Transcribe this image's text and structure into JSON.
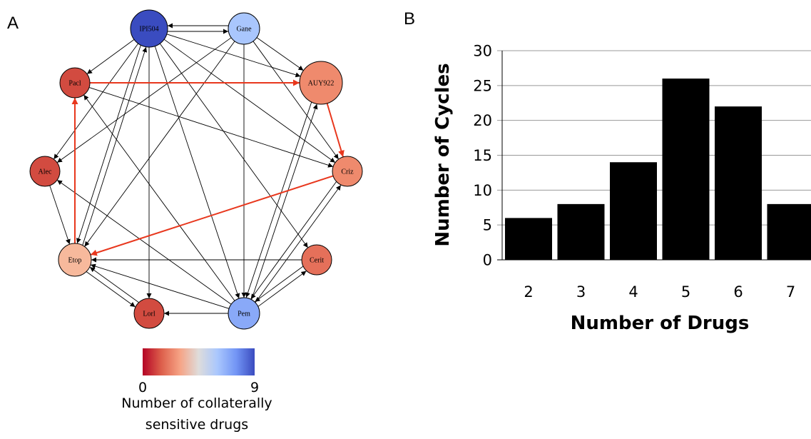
{
  "panels": {
    "a": "A",
    "b": "B"
  },
  "network": {
    "nodes": [
      {
        "id": "IPI504",
        "label": "IPI504",
        "value": 9,
        "color": "#3a4cc0"
      },
      {
        "id": "Gane",
        "label": "Gane",
        "value": 6,
        "color": "#a9c6fd"
      },
      {
        "id": "AUY922",
        "label": "AUY922",
        "value": 2,
        "color": "#ef8a6d"
      },
      {
        "id": "Criz",
        "label": "Criz",
        "value": 2,
        "color": "#ef8a6d"
      },
      {
        "id": "Cerit",
        "label": "Cerit",
        "value": 1,
        "color": "#e5705a"
      },
      {
        "id": "Pem",
        "label": "Pem",
        "value": 7,
        "color": "#89a9f8"
      },
      {
        "id": "Lorl",
        "label": "Lorl",
        "value": 0,
        "color": "#d24b40"
      },
      {
        "id": "Etop",
        "label": "Etop",
        "value": 3,
        "color": "#f7b99c"
      },
      {
        "id": "Alec",
        "label": "Alec",
        "value": 0,
        "color": "#d24b40"
      },
      {
        "id": "Pacl",
        "label": "Pacl",
        "value": 0,
        "color": "#d24b40"
      }
    ],
    "edges": [
      {
        "from": "IPI504",
        "to": "Gane"
      },
      {
        "from": "Gane",
        "to": "IPI504"
      },
      {
        "from": "IPI504",
        "to": "AUY922"
      },
      {
        "from": "Gane",
        "to": "AUY922"
      },
      {
        "from": "IPI504",
        "to": "Criz"
      },
      {
        "from": "Gane",
        "to": "Criz"
      },
      {
        "from": "IPI504",
        "to": "Cerit"
      },
      {
        "from": "IPI504",
        "to": "Pacl"
      },
      {
        "from": "IPI504",
        "to": "Alec"
      },
      {
        "from": "IPI504",
        "to": "Etop"
      },
      {
        "from": "Etop",
        "to": "IPI504"
      },
      {
        "from": "IPI504",
        "to": "Lorl"
      },
      {
        "from": "IPI504",
        "to": "Pem"
      },
      {
        "from": "Gane",
        "to": "Alec"
      },
      {
        "from": "Gane",
        "to": "Etop"
      },
      {
        "from": "Gane",
        "to": "Pem"
      },
      {
        "from": "Pacl",
        "to": "AUY922",
        "highlight": true
      },
      {
        "from": "AUY922",
        "to": "Criz",
        "highlight": true
      },
      {
        "from": "Criz",
        "to": "Etop",
        "highlight": true
      },
      {
        "from": "Etop",
        "to": "Pacl",
        "highlight": true
      },
      {
        "from": "Pem",
        "to": "AUY922"
      },
      {
        "from": "AUY922",
        "to": "Pem"
      },
      {
        "from": "Pem",
        "to": "Criz"
      },
      {
        "from": "Criz",
        "to": "Pem"
      },
      {
        "from": "Pem",
        "to": "Cerit"
      },
      {
        "from": "Cerit",
        "to": "Pem"
      },
      {
        "from": "Pem",
        "to": "Lorl"
      },
      {
        "from": "Pem",
        "to": "Etop"
      },
      {
        "from": "Pem",
        "to": "Alec"
      },
      {
        "from": "Pem",
        "to": "Pacl"
      },
      {
        "from": "Lorl",
        "to": "Etop"
      },
      {
        "from": "Etop",
        "to": "Lorl"
      },
      {
        "from": "Alec",
        "to": "Etop"
      },
      {
        "from": "Cerit",
        "to": "Etop"
      },
      {
        "from": "Pacl",
        "to": "Criz"
      }
    ],
    "edge_color": "#000000",
    "highlight_color": "#e8371d"
  },
  "colorbar": {
    "min_label": "0",
    "max_label": "9",
    "caption_line1": "Number of collaterally",
    "caption_line2": "sensitive drugs",
    "stops": [
      "#b40426",
      "#dd5f4b",
      "#f6a385",
      "#dedcdb",
      "#aac7fd",
      "#7396f5",
      "#3b4cc0"
    ]
  },
  "chart_data": {
    "type": "bar",
    "categories": [
      "2",
      "3",
      "4",
      "5",
      "6",
      "7"
    ],
    "values": [
      6,
      8,
      14,
      26,
      22,
      8
    ],
    "xlabel": "Number of Drugs",
    "ylabel": "Number of Cycles",
    "ylim": [
      0,
      30
    ],
    "yticks": [
      "0",
      "5",
      "10",
      "15",
      "20",
      "25",
      "30"
    ],
    "grid": true,
    "bar_color": "#000000"
  }
}
